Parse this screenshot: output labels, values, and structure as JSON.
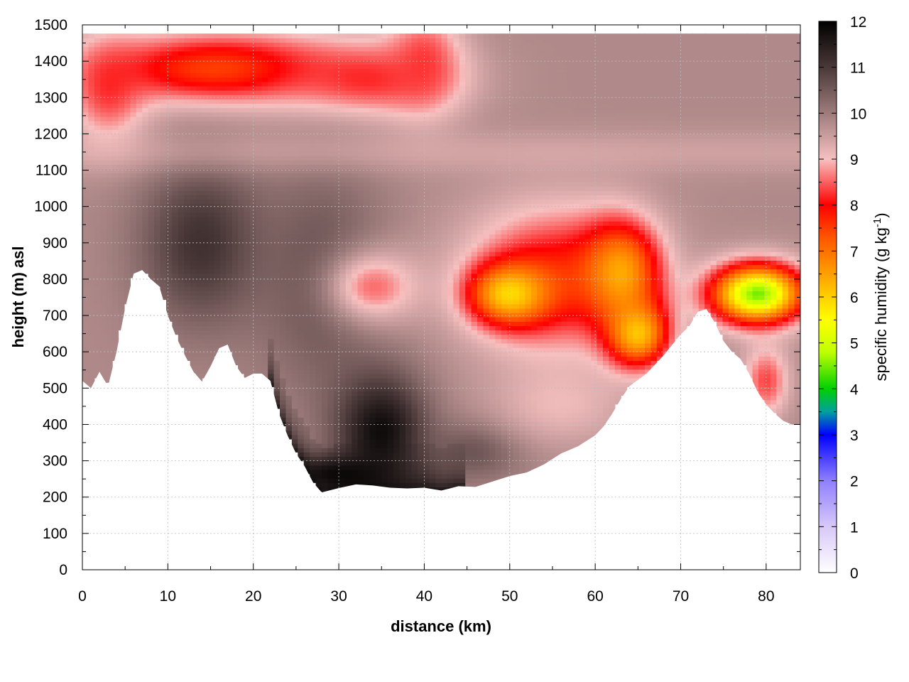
{
  "chart_data": {
    "type": "heatmap",
    "title": "",
    "xlabel": "distance (km)",
    "ylabel": "height (m) asl",
    "colorbar_label_main": "specific humidity (g kg",
    "colorbar_label_sup": "-1",
    "colorbar_label_end": ")",
    "xlim": [
      0,
      84
    ],
    "ylim": [
      0,
      1500
    ],
    "clim": [
      0,
      12
    ],
    "x_ticks": [
      0,
      10,
      20,
      30,
      40,
      50,
      60,
      70,
      80
    ],
    "y_ticks": [
      0,
      100,
      200,
      300,
      400,
      500,
      600,
      700,
      800,
      900,
      1000,
      1100,
      1200,
      1300,
      1400,
      1500
    ],
    "c_ticks": [
      0,
      1,
      2,
      3,
      4,
      5,
      6,
      7,
      8,
      9,
      10,
      11,
      12
    ],
    "grid": true,
    "colormap": [
      {
        "v": 0,
        "color": "#ffffff"
      },
      {
        "v": 1,
        "color": "#d8c8f8"
      },
      {
        "v": 2,
        "color": "#8f80ff"
      },
      {
        "v": 3,
        "color": "#0000ff"
      },
      {
        "v": 3.5,
        "color": "#00a0a0"
      },
      {
        "v": 4,
        "color": "#00d000"
      },
      {
        "v": 4.8,
        "color": "#c0ff00"
      },
      {
        "v": 5.5,
        "color": "#ffff00"
      },
      {
        "v": 6.5,
        "color": "#ffa000"
      },
      {
        "v": 7.3,
        "color": "#ff5500"
      },
      {
        "v": 8,
        "color": "#ff0000"
      },
      {
        "v": 9,
        "color": "#f7c0c0"
      },
      {
        "v": 10,
        "color": "#9e7c7c"
      },
      {
        "v": 11,
        "color": "#4a3838"
      },
      {
        "v": 12,
        "color": "#000000"
      }
    ],
    "terrain": [
      {
        "x": 0,
        "h": 520
      },
      {
        "x": 1,
        "h": 500
      },
      {
        "x": 2,
        "h": 545
      },
      {
        "x": 3,
        "h": 505
      },
      {
        "x": 4,
        "h": 600
      },
      {
        "x": 5,
        "h": 720
      },
      {
        "x": 6,
        "h": 815
      },
      {
        "x": 7,
        "h": 825
      },
      {
        "x": 8,
        "h": 800
      },
      {
        "x": 9,
        "h": 780
      },
      {
        "x": 10,
        "h": 700
      },
      {
        "x": 11,
        "h": 640
      },
      {
        "x": 12,
        "h": 590
      },
      {
        "x": 13,
        "h": 545
      },
      {
        "x": 14,
        "h": 518
      },
      {
        "x": 15,
        "h": 560
      },
      {
        "x": 16,
        "h": 610
      },
      {
        "x": 17,
        "h": 620
      },
      {
        "x": 18,
        "h": 560
      },
      {
        "x": 19,
        "h": 528
      },
      {
        "x": 20,
        "h": 540
      },
      {
        "x": 21,
        "h": 540
      },
      {
        "x": 22,
        "h": 520
      },
      {
        "x": 23,
        "h": 430
      },
      {
        "x": 24,
        "h": 370
      },
      {
        "x": 25,
        "h": 320
      },
      {
        "x": 26,
        "h": 285
      },
      {
        "x": 27,
        "h": 240
      },
      {
        "x": 28,
        "h": 213
      },
      {
        "x": 30,
        "h": 225
      },
      {
        "x": 32,
        "h": 235
      },
      {
        "x": 34,
        "h": 232
      },
      {
        "x": 36,
        "h": 226
      },
      {
        "x": 38,
        "h": 224
      },
      {
        "x": 40,
        "h": 226
      },
      {
        "x": 42,
        "h": 218
      },
      {
        "x": 44,
        "h": 230
      },
      {
        "x": 46,
        "h": 228
      },
      {
        "x": 48,
        "h": 243
      },
      {
        "x": 50,
        "h": 258
      },
      {
        "x": 52,
        "h": 268
      },
      {
        "x": 54,
        "h": 290
      },
      {
        "x": 56,
        "h": 320
      },
      {
        "x": 58,
        "h": 340
      },
      {
        "x": 60,
        "h": 370
      },
      {
        "x": 61,
        "h": 395
      },
      {
        "x": 62,
        "h": 430
      },
      {
        "x": 63,
        "h": 470
      },
      {
        "x": 64,
        "h": 505
      },
      {
        "x": 66,
        "h": 540
      },
      {
        "x": 68,
        "h": 590
      },
      {
        "x": 70,
        "h": 648
      },
      {
        "x": 71,
        "h": 670
      },
      {
        "x": 72,
        "h": 710
      },
      {
        "x": 73,
        "h": 718
      },
      {
        "x": 74,
        "h": 680
      },
      {
        "x": 75,
        "h": 630
      },
      {
        "x": 76,
        "h": 600
      },
      {
        "x": 77,
        "h": 580
      },
      {
        "x": 78,
        "h": 540
      },
      {
        "x": 79,
        "h": 490
      },
      {
        "x": 80,
        "h": 455
      },
      {
        "x": 81,
        "h": 430
      },
      {
        "x": 82,
        "h": 410
      },
      {
        "x": 83,
        "h": 400
      }
    ],
    "background_value": 9.8,
    "features": [
      {
        "x": 16,
        "h": 1380,
        "rx": 16,
        "rh": 110,
        "v": 7.3,
        "w": 0.95
      },
      {
        "x": 33,
        "h": 1350,
        "rx": 11,
        "rh": 110,
        "v": 8.0,
        "w": 0.9
      },
      {
        "x": 40,
        "h": 1400,
        "rx": 5,
        "rh": 160,
        "v": 8.2,
        "w": 0.9
      },
      {
        "x": 14,
        "h": 900,
        "rx": 8,
        "rh": 250,
        "v": 11.2,
        "w": 0.95
      },
      {
        "x": 28,
        "h": 800,
        "rx": 8,
        "rh": 350,
        "v": 10.8,
        "w": 0.85
      },
      {
        "x": 35,
        "h": 380,
        "rx": 6,
        "rh": 180,
        "v": 11.9,
        "w": 0.95
      },
      {
        "x": 30,
        "h": 265,
        "rx": 7,
        "rh": 55,
        "v": 11.9,
        "w": 0.95
      },
      {
        "x": 46,
        "h": 330,
        "rx": 6,
        "rh": 90,
        "v": 11.0,
        "w": 0.7
      },
      {
        "x": 56,
        "h": 450,
        "rx": 9,
        "rh": 120,
        "v": 9.0,
        "w": 0.8
      },
      {
        "x": 34,
        "h": 780,
        "rx": 6,
        "rh": 110,
        "v": 8.3,
        "w": 0.85
      },
      {
        "x": 55,
        "h": 800,
        "rx": 11,
        "rh": 220,
        "v": 7.7,
        "w": 0.95
      },
      {
        "x": 50,
        "h": 760,
        "rx": 5,
        "rh": 90,
        "v": 5.6,
        "w": 0.9
      },
      {
        "x": 63,
        "h": 820,
        "rx": 5,
        "rh": 150,
        "v": 6.0,
        "w": 0.85
      },
      {
        "x": 65,
        "h": 650,
        "rx": 4,
        "rh": 100,
        "v": 5.6,
        "w": 0.85
      },
      {
        "x": 79,
        "h": 760,
        "rx": 6,
        "rh": 90,
        "v": 4.2,
        "w": 0.95
      },
      {
        "x": 80,
        "h": 520,
        "rx": 3,
        "rh": 110,
        "v": 8.0,
        "w": 0.8
      },
      {
        "x": 3,
        "h": 1320,
        "rx": 5,
        "rh": 160,
        "v": 8.0,
        "w": 0.8
      }
    ]
  }
}
